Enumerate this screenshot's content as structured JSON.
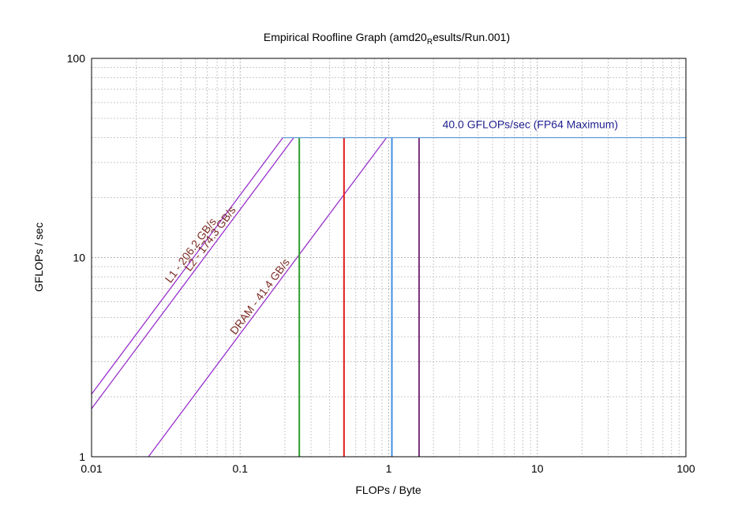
{
  "chart_data": {
    "type": "line",
    "title_main": "Empirical Roofline Graph (amd20",
    "title_sub": "R",
    "title_tail": "esults/Run.001)",
    "xlabel": "FLOPs / Byte",
    "ylabel": "GFLOPs / sec",
    "xscale": "log",
    "yscale": "log",
    "xlim": [
      0.01,
      100
    ],
    "ylim": [
      1,
      100
    ],
    "grid": true,
    "xticks": [
      {
        "value": 0.01,
        "label": "0.01"
      },
      {
        "value": 0.1,
        "label": "0.1"
      },
      {
        "value": 1,
        "label": "1"
      },
      {
        "value": 10,
        "label": "10"
      },
      {
        "value": 100,
        "label": "100"
      }
    ],
    "yticks": [
      {
        "value": 1,
        "label": "1"
      },
      {
        "value": 10,
        "label": "10"
      },
      {
        "value": 100,
        "label": "100"
      }
    ],
    "compute_roof": {
      "label": "40.0 GFLOPs/sec (FP64 Maximum)",
      "gflops": 40.0,
      "color": "#5b9bd5",
      "label_color": "#1f1f8f"
    },
    "bandwidth_roofs": [
      {
        "label": "L1 - 206.2 GB/s",
        "bandwidth": 206.2,
        "color": "#9932cc",
        "label_color": "#7b2d26"
      },
      {
        "label": "L2 - 174.3 GB/s",
        "bandwidth": 174.3,
        "color": "#9932cc",
        "label_color": "#7b2d26"
      },
      {
        "label": "DRAM - 41.4 GB/s",
        "bandwidth": 41.4,
        "color": "#9932cc",
        "label_color": "#7b2d26"
      }
    ],
    "vertical_markers": [
      {
        "x": 0.25,
        "color": "#2e9e2e"
      },
      {
        "x": 0.5,
        "color": "#e01b1b"
      },
      {
        "x": 1.05,
        "color": "#3f8fe0"
      },
      {
        "x": 1.6,
        "color": "#7a2f7a"
      }
    ]
  }
}
